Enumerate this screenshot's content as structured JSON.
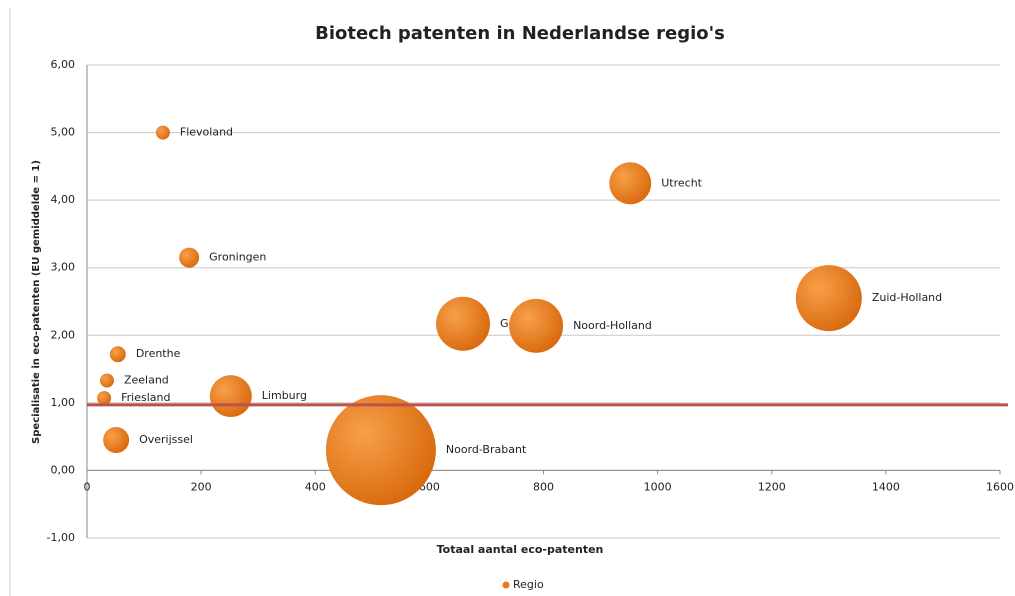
{
  "chart_data": {
    "type": "bubble",
    "title": "Biotech patenten in Nederlandse regio's",
    "x_label": "Totaal aantal eco-patenten",
    "y_label": "Specialisatie in eco-patenten (EU gemiddelde = 1)",
    "xlim": [
      0,
      1600
    ],
    "xticks": [
      0,
      200,
      400,
      600,
      800,
      1000,
      1200,
      1400,
      1600
    ],
    "ylim": [
      -1,
      6
    ],
    "yticks": [
      {
        "value": -1,
        "label": "-1,00"
      },
      {
        "value": 0,
        "label": "0,00"
      },
      {
        "value": 1,
        "label": "1,00"
      },
      {
        "value": 2,
        "label": "2,00"
      },
      {
        "value": 3,
        "label": "3,00"
      },
      {
        "value": 4,
        "label": "4,00"
      },
      {
        "value": 5,
        "label": "5,00"
      },
      {
        "value": 6,
        "label": "6,00"
      }
    ],
    "grid": true,
    "legend": "bottom",
    "reference_line": {
      "value": 0.97,
      "color": "#c0504d"
    },
    "series": [
      {
        "name": "Regio",
        "color": "#e8781a",
        "labels": [
          "Flevoland",
          "Groningen",
          "Drenthe",
          "Zeeland",
          "Friesland",
          "Overijssel",
          "Limburg",
          "Noord-Brabant",
          "Gelderland",
          "Noord-Holland",
          "Utrecht",
          "Zuid-Holland"
        ],
        "x": [
          133,
          179,
          54,
          35,
          30,
          51,
          252,
          515,
          659,
          787,
          952,
          1300
        ],
        "values": [
          5.0,
          3.15,
          1.72,
          1.33,
          1.07,
          0.45,
          1.1,
          0.3,
          2.17,
          2.14,
          4.25,
          2.55
        ],
        "sizes": [
          49,
          100,
          64,
          49,
          49,
          169,
          441,
          3025,
          729,
          729,
          441,
          1089
        ]
      }
    ]
  }
}
